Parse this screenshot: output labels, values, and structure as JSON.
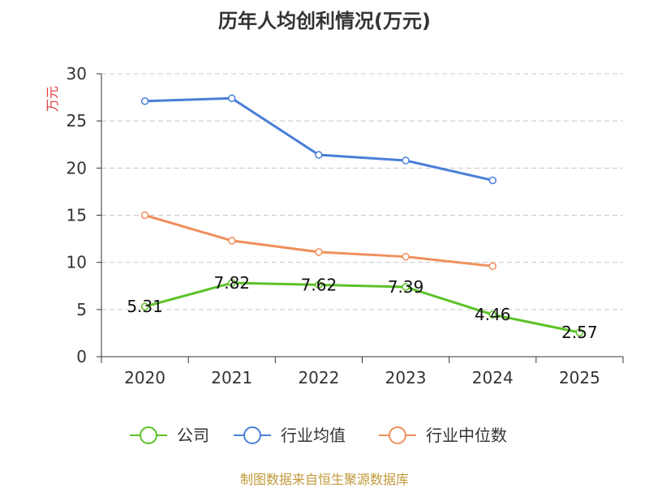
{
  "chart_data": {
    "type": "line",
    "title": "历年人均创利情况(万元)",
    "ylabel": "万元",
    "xlabel": "",
    "categories": [
      "2020",
      "2021",
      "2022",
      "2023",
      "2024",
      "2025"
    ],
    "ylim": [
      0,
      30
    ],
    "yticks": [
      0,
      5,
      10,
      15,
      20,
      25,
      30
    ],
    "grid": true,
    "legend_position": "bottom",
    "series": [
      {
        "name": "公司",
        "color": "#5cc227",
        "values": [
          5.31,
          7.82,
          7.62,
          7.39,
          4.46,
          2.57
        ],
        "labels": [
          "5.31",
          "7.82",
          "7.62",
          "7.39",
          "4.46",
          "2.57"
        ]
      },
      {
        "name": "行业均值",
        "color": "#4a7fd8",
        "values": [
          27.1,
          27.4,
          21.4,
          20.8,
          18.7,
          null
        ]
      },
      {
        "name": "行业中位数",
        "color": "#f08f5c",
        "values": [
          15.0,
          12.3,
          11.1,
          10.6,
          9.6,
          null
        ]
      }
    ]
  },
  "source": "制图数据来自恒生聚源数据库"
}
